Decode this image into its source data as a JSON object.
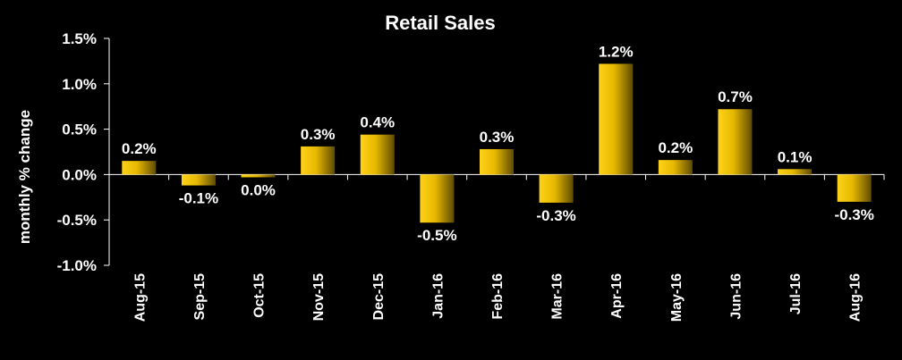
{
  "chart_data": {
    "type": "bar",
    "title": "Retail Sales",
    "xlabel": "",
    "ylabel": "monthly % change",
    "categories": [
      "Aug-15",
      "Sep-15",
      "Oct-15",
      "Nov-15",
      "Dec-15",
      "Jan-16",
      "Feb-16",
      "Mar-16",
      "Apr-16",
      "May-16",
      "Jun-16",
      "Jul-16",
      "Aug-16"
    ],
    "values": [
      0.15,
      -0.12,
      -0.03,
      0.31,
      0.44,
      -0.53,
      0.28,
      -0.31,
      1.22,
      0.16,
      0.72,
      0.06,
      -0.3
    ],
    "data_labels": [
      "0.2%",
      "-0.1%",
      "0.0%",
      "0.3%",
      "0.4%",
      "-0.5%",
      "0.3%",
      "-0.3%",
      "1.2%",
      "0.2%",
      "0.7%",
      "0.1%",
      "-0.3%"
    ],
    "ylim": [
      -1.0,
      1.5
    ],
    "yticks": [
      1.5,
      1.0,
      0.5,
      0.0,
      -0.5,
      -1.0
    ],
    "ytick_labels": [
      "1.5%",
      "1.0%",
      "0.5%",
      "0.0%",
      "-0.5%",
      "-1.0%"
    ],
    "grid": false,
    "legend": "none",
    "colors": {
      "background": "#000000",
      "text": "#ffffff",
      "bar_light": "#ffd21a",
      "bar_dark": "#6e5800"
    }
  }
}
